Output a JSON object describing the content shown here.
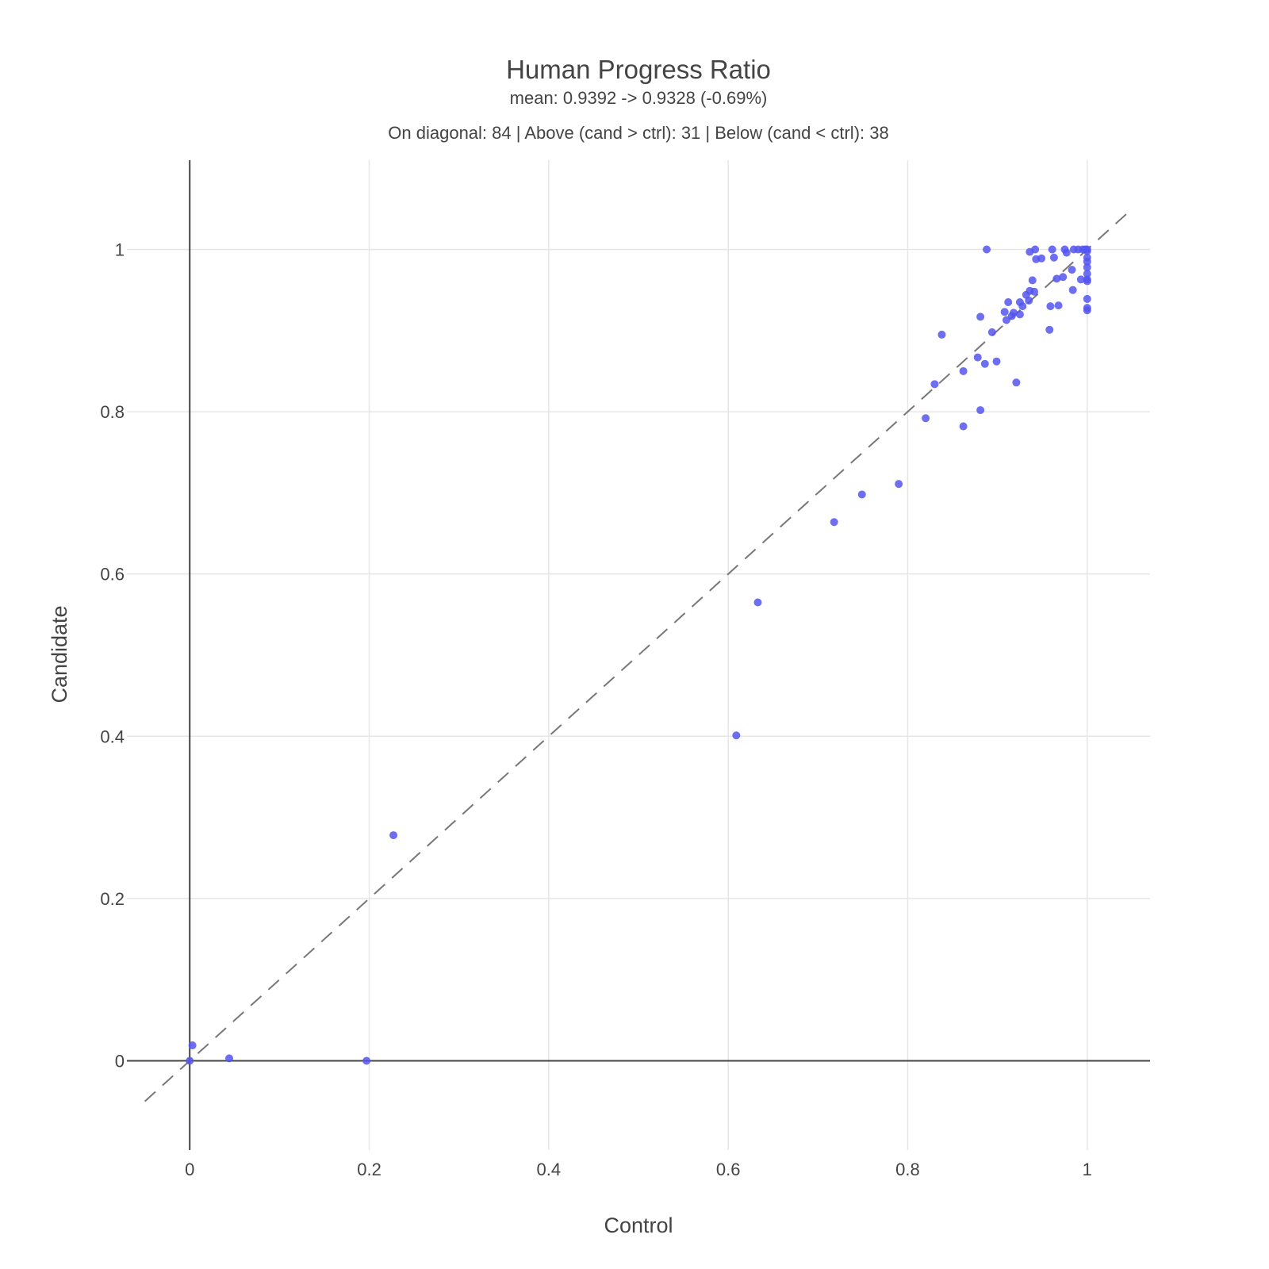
{
  "chart_data": {
    "type": "scatter",
    "title": "Human Progress Ratio",
    "subtitle": "mean: 0.9392 -> 0.9328 (-0.69%)",
    "annotation": "On diagonal: 84 | Above (cand > ctrl): 31 | Below (cand < ctrl): 38",
    "xlabel": "Control",
    "ylabel": "Candidate",
    "xlim": [
      -0.07,
      1.07
    ],
    "ylim": [
      -0.11,
      1.11
    ],
    "x_ticks": [
      "0",
      "0.2",
      "0.4",
      "0.6",
      "0.8",
      "1"
    ],
    "y_ticks": [
      "0",
      "0.2",
      "0.4",
      "0.6",
      "0.8",
      "1"
    ],
    "grid": true,
    "diagonal_reference": {
      "from": [
        -0.05,
        -0.05
      ],
      "to": [
        1.05,
        1.05
      ],
      "style": "dashed",
      "color": "#777777"
    },
    "marker_color": "#5555ee",
    "series": [
      {
        "points": [
          [
            0.0,
            0.0
          ],
          [
            0.003,
            0.019
          ],
          [
            0.044,
            0.003
          ],
          [
            0.197,
            0.0
          ],
          [
            0.227,
            0.278
          ],
          [
            0.609,
            0.401
          ],
          [
            0.633,
            0.565
          ],
          [
            0.718,
            0.664
          ],
          [
            0.749,
            0.698
          ],
          [
            0.79,
            0.711
          ],
          [
            0.82,
            0.792
          ],
          [
            0.83,
            0.834
          ],
          [
            0.838,
            0.895
          ],
          [
            0.862,
            0.782
          ],
          [
            0.862,
            0.85
          ],
          [
            0.878,
            0.867
          ],
          [
            0.881,
            0.802
          ],
          [
            0.881,
            0.917
          ],
          [
            0.886,
            0.859
          ],
          [
            0.888,
            1.0
          ],
          [
            0.894,
            0.898
          ],
          [
            0.899,
            0.862
          ],
          [
            0.908,
            0.923
          ],
          [
            0.91,
            0.913
          ],
          [
            0.912,
            0.935
          ],
          [
            0.916,
            0.918
          ],
          [
            0.918,
            0.922
          ],
          [
            0.921,
            0.836
          ],
          [
            0.925,
            0.92
          ],
          [
            0.925,
            0.935
          ],
          [
            0.928,
            0.93
          ],
          [
            0.932,
            0.944
          ],
          [
            0.935,
            0.937
          ],
          [
            0.936,
            0.949
          ],
          [
            0.936,
            0.997
          ],
          [
            0.939,
            0.962
          ],
          [
            0.941,
            0.948
          ],
          [
            0.942,
            1.0
          ],
          [
            0.943,
            0.988
          ],
          [
            0.949,
            0.989
          ],
          [
            0.958,
            0.901
          ],
          [
            0.959,
            0.93
          ],
          [
            0.961,
            1.0
          ],
          [
            0.963,
            0.99
          ],
          [
            0.966,
            0.964
          ],
          [
            0.968,
            0.931
          ],
          [
            0.973,
            0.966
          ],
          [
            0.975,
            1.0
          ],
          [
            0.977,
            0.996
          ],
          [
            0.983,
            0.975
          ],
          [
            0.984,
            0.95
          ],
          [
            0.985,
            1.0
          ],
          [
            0.99,
            1.0
          ],
          [
            0.993,
            0.963
          ],
          [
            0.995,
            1.0
          ],
          [
            0.998,
            1.0
          ],
          [
            1.0,
            1.0
          ],
          [
            1.0,
            0.998
          ],
          [
            1.0,
            0.99
          ],
          [
            1.0,
            0.985
          ],
          [
            1.0,
            0.978
          ],
          [
            1.0,
            0.97
          ],
          [
            1.0,
            0.963
          ],
          [
            1.0,
            0.961
          ],
          [
            1.0,
            0.939
          ],
          [
            1.0,
            0.928
          ],
          [
            1.0,
            0.925
          ]
        ]
      }
    ]
  }
}
